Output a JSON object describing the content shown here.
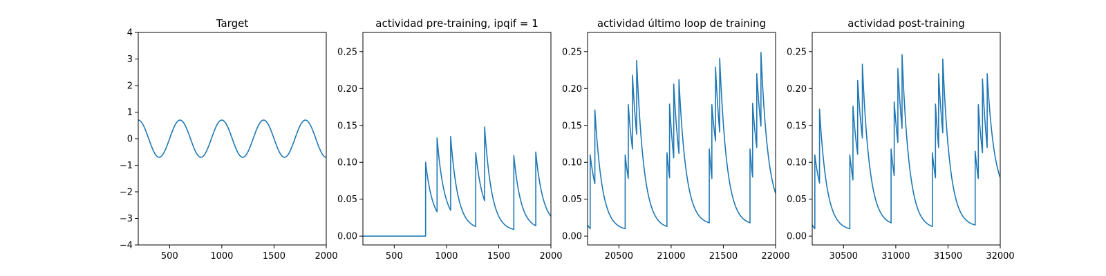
{
  "chart_data": [
    {
      "type": "line",
      "title": "Target",
      "xlabel": "",
      "ylabel": "",
      "xlim": [
        200,
        2000
      ],
      "ylim": [
        -4,
        4
      ],
      "x_ticks": [
        500,
        1000,
        1500,
        2000
      ],
      "y_ticks": [
        -4,
        -3,
        -2,
        -1,
        0,
        1,
        2,
        3,
        4
      ],
      "grid": false,
      "series": [
        {
          "color": "#1f77b4",
          "function": "sine",
          "amplitude": 0.7,
          "period": 400,
          "peaks_at_x": [
            200,
            600,
            1000,
            1400,
            1800
          ],
          "troughs_at_x": [
            400,
            800,
            1200,
            1600,
            2000
          ]
        }
      ]
    },
    {
      "type": "line",
      "title": "actividad pre-training, ipqif = 1",
      "xlabel": "",
      "ylabel": "",
      "xlim": [
        200,
        2000
      ],
      "ylim": [
        -0.012,
        0.276
      ],
      "x_ticks": [
        500,
        1000,
        1500,
        2000
      ],
      "y_ticks": [
        0.0,
        0.05,
        0.1,
        0.15,
        0.2,
        0.25
      ],
      "y_tick_labels": [
        "0.00",
        "0.05",
        "0.10",
        "0.15",
        "0.20",
        "0.25"
      ],
      "grid": false,
      "series": [
        {
          "color": "#1f77b4",
          "start": [
            200,
            0.0
          ],
          "jumps": [
            {
              "x": 800,
              "from": 0.0,
              "to": 0.1
            },
            {
              "x": 910,
              "from": 0.033,
              "to": 0.133
            },
            {
              "x": 1040,
              "from": 0.035,
              "to": 0.135
            },
            {
              "x": 1280,
              "from": 0.013,
              "to": 0.113
            },
            {
              "x": 1365,
              "from": 0.048,
              "to": 0.148
            },
            {
              "x": 1645,
              "from": 0.009,
              "to": 0.109
            },
            {
              "x": 1855,
              "from": 0.014,
              "to": 0.114
            }
          ],
          "end": [
            2000,
            0.027
          ]
        }
      ]
    },
    {
      "type": "line",
      "title": "actividad último loop de training",
      "xlabel": "",
      "ylabel": "",
      "xlim": [
        20200,
        22000
      ],
      "ylim": [
        -0.012,
        0.276
      ],
      "x_ticks": [
        20500,
        21000,
        21500,
        22000
      ],
      "y_ticks": [
        0.0,
        0.05,
        0.1,
        0.15,
        0.2,
        0.25
      ],
      "y_tick_labels": [
        "0.00",
        "0.05",
        "0.10",
        "0.15",
        "0.20",
        "0.25"
      ],
      "grid": false,
      "series": [
        {
          "color": "#1f77b4",
          "start": [
            20200,
            0.015
          ],
          "jumps": [
            {
              "x": 20225,
              "from": 0.01,
              "to": 0.11
            },
            {
              "x": 20270,
              "from": 0.071,
              "to": 0.171
            },
            {
              "x": 20560,
              "from": 0.01,
              "to": 0.11
            },
            {
              "x": 20590,
              "from": 0.078,
              "to": 0.178
            },
            {
              "x": 20630,
              "from": 0.118,
              "to": 0.218
            },
            {
              "x": 20670,
              "from": 0.138,
              "to": 0.238
            },
            {
              "x": 20960,
              "from": 0.013,
              "to": 0.113
            },
            {
              "x": 20985,
              "from": 0.079,
              "to": 0.179
            },
            {
              "x": 21025,
              "from": 0.106,
              "to": 0.206
            },
            {
              "x": 21075,
              "from": 0.112,
              "to": 0.212
            },
            {
              "x": 21365,
              "from": 0.018,
              "to": 0.118
            },
            {
              "x": 21390,
              "from": 0.078,
              "to": 0.178
            },
            {
              "x": 21425,
              "from": 0.129,
              "to": 0.229
            },
            {
              "x": 21465,
              "from": 0.141,
              "to": 0.241
            },
            {
              "x": 21755,
              "from": 0.018,
              "to": 0.118
            },
            {
              "x": 21780,
              "from": 0.08,
              "to": 0.18
            },
            {
              "x": 21820,
              "from": 0.12,
              "to": 0.22
            },
            {
              "x": 21860,
              "from": 0.149,
              "to": 0.249
            }
          ],
          "end": [
            22000,
            0.058
          ]
        }
      ]
    },
    {
      "type": "line",
      "title": "actividad post-training",
      "xlabel": "",
      "ylabel": "",
      "xlim": [
        30200,
        32000
      ],
      "ylim": [
        -0.012,
        0.276
      ],
      "x_ticks": [
        30500,
        31000,
        31500,
        32000
      ],
      "y_ticks": [
        0.0,
        0.05,
        0.1,
        0.15,
        0.2,
        0.25
      ],
      "y_tick_labels": [
        "0.00",
        "0.05",
        "0.10",
        "0.15",
        "0.20",
        "0.25"
      ],
      "grid": false,
      "series": [
        {
          "color": "#1f77b4",
          "start": [
            30200,
            0.015
          ],
          "jumps": [
            {
              "x": 30225,
              "from": 0.01,
              "to": 0.11
            },
            {
              "x": 30270,
              "from": 0.072,
              "to": 0.172
            },
            {
              "x": 30560,
              "from": 0.01,
              "to": 0.11
            },
            {
              "x": 30590,
              "from": 0.076,
              "to": 0.176
            },
            {
              "x": 30635,
              "from": 0.111,
              "to": 0.211
            },
            {
              "x": 30680,
              "from": 0.133,
              "to": 0.233
            },
            {
              "x": 30955,
              "from": 0.018,
              "to": 0.118
            },
            {
              "x": 30985,
              "from": 0.082,
              "to": 0.182
            },
            {
              "x": 31020,
              "from": 0.127,
              "to": 0.227
            },
            {
              "x": 31060,
              "from": 0.146,
              "to": 0.246
            },
            {
              "x": 31350,
              "from": 0.013,
              "to": 0.113
            },
            {
              "x": 31380,
              "from": 0.079,
              "to": 0.179
            },
            {
              "x": 31410,
              "from": 0.12,
              "to": 0.22
            },
            {
              "x": 31450,
              "from": 0.14,
              "to": 0.24
            },
            {
              "x": 31760,
              "from": 0.015,
              "to": 0.115
            },
            {
              "x": 31790,
              "from": 0.078,
              "to": 0.178
            },
            {
              "x": 31830,
              "from": 0.113,
              "to": 0.213
            },
            {
              "x": 31875,
              "from": 0.12,
              "to": 0.22
            }
          ],
          "end": [
            32000,
            0.079
          ]
        }
      ]
    }
  ]
}
